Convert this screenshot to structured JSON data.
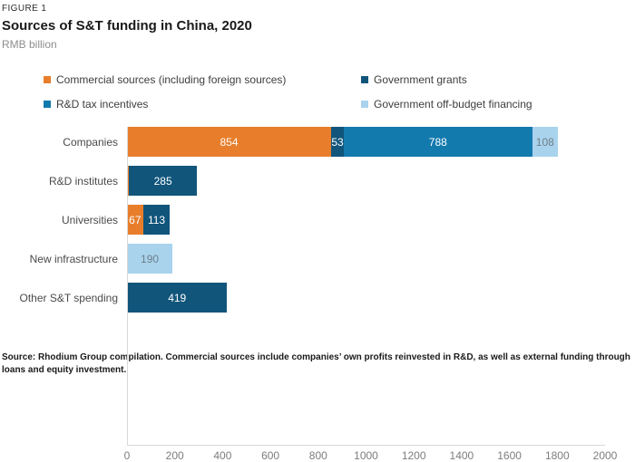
{
  "header": {
    "figure_label": "FIGURE 1",
    "title": "Sources of S&T funding in China, 2020",
    "units": "RMB billion"
  },
  "colors": {
    "orange": "#e87e2b",
    "dark_blue": "#11557b",
    "mid_blue": "#137aae",
    "light_blue": "#a9d3ec",
    "label_on_dark": "#ffffff",
    "label_on_light": "#6f7e8a",
    "axis_line": "#d8d8d8",
    "tick_text": "#7d7d7d"
  },
  "legend": [
    {
      "label": "Commercial sources (including foreign sources)",
      "color_key": "orange"
    },
    {
      "label": "Government grants",
      "color_key": "dark_blue"
    },
    {
      "label": "R&D tax incentives",
      "color_key": "mid_blue"
    },
    {
      "label": "Government off-budget financing",
      "color_key": "light_blue"
    }
  ],
  "chart_data": {
    "type": "bar",
    "orientation": "horizontal",
    "stacked": true,
    "title": "Sources of S&T funding in China, 2020",
    "xlabel": "",
    "ylabel": "",
    "units": "RMB billion",
    "grid": false,
    "legend_position": "top",
    "xlim": [
      0,
      2000
    ],
    "x_ticks": [
      0,
      200,
      400,
      600,
      800,
      1000,
      1200,
      1400,
      1600,
      1800,
      2000
    ],
    "categories": [
      "Companies",
      "R&D institutes",
      "Universities",
      "New infrastructure",
      "Other S&T spending"
    ],
    "series": [
      {
        "name": "Commercial sources (including foreign sources)",
        "color_key": "orange",
        "values": [
          854,
          8,
          67,
          0,
          0
        ]
      },
      {
        "name": "Government grants",
        "color_key": "dark_blue",
        "values": [
          53,
          285,
          113,
          0,
          419
        ]
      },
      {
        "name": "R&D tax incentives",
        "color_key": "mid_blue",
        "values": [
          788,
          0,
          0,
          0,
          0
        ]
      },
      {
        "name": "Government off-budget financing",
        "color_key": "light_blue",
        "values": [
          108,
          0,
          0,
          190,
          0
        ]
      }
    ],
    "notes": "Segment for Commercial sources in R&D institutes row is too small to carry a visible data label."
  },
  "footer": {
    "source": "Source: Rhodium Group compilation. Commercial sources include companies’ own profits reinvested in R&D, as well as external funding through loans and equity investment."
  }
}
